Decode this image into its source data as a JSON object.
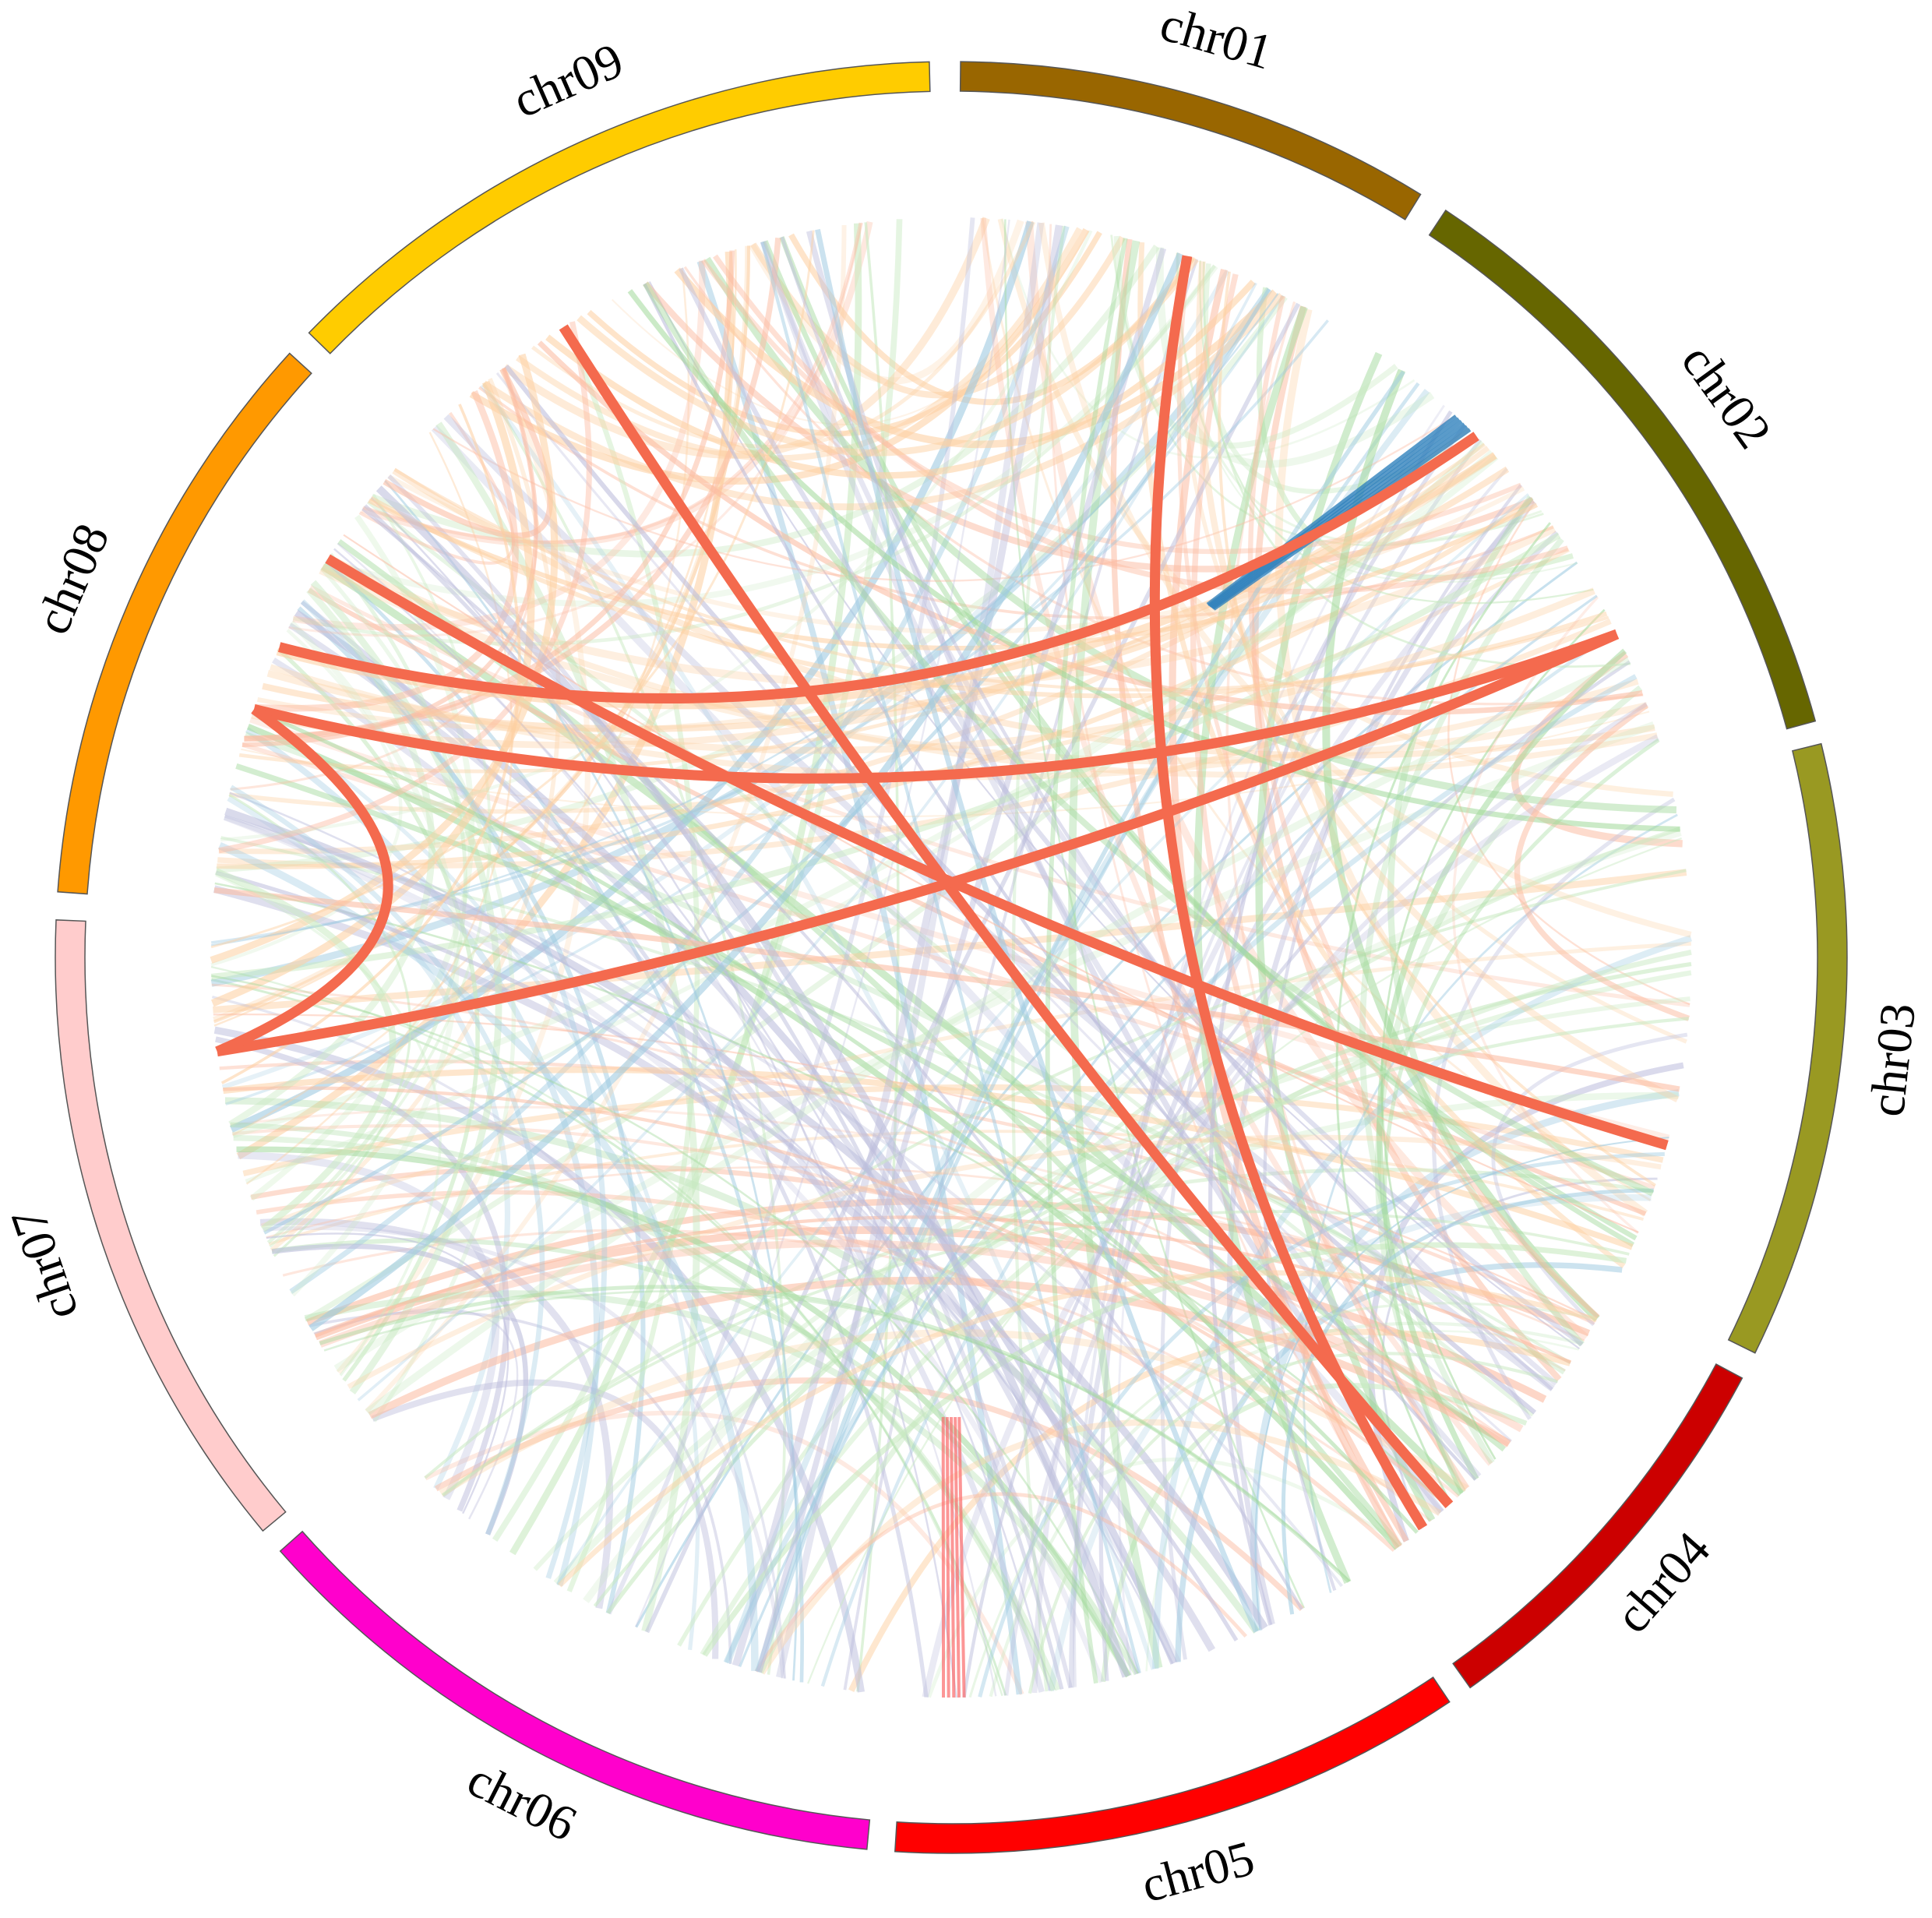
{
  "chart_data": {
    "type": "circos",
    "chromosomes": [
      {
        "name": "chr01",
        "color": "#996600"
      },
      {
        "name": "chr02",
        "color": "#666600"
      },
      {
        "name": "chr03",
        "color": "#999922"
      },
      {
        "name": "chr04",
        "color": "#cc0000"
      },
      {
        "name": "chr05",
        "color": "#ff0000"
      },
      {
        "name": "chr06",
        "color": "#ff00cc"
      },
      {
        "name": "chr07",
        "color": "#ffcccc"
      },
      {
        "name": "chr08",
        "color": "#ff9900"
      },
      {
        "name": "chr09",
        "color": "#ffcc00"
      }
    ]
  }
}
